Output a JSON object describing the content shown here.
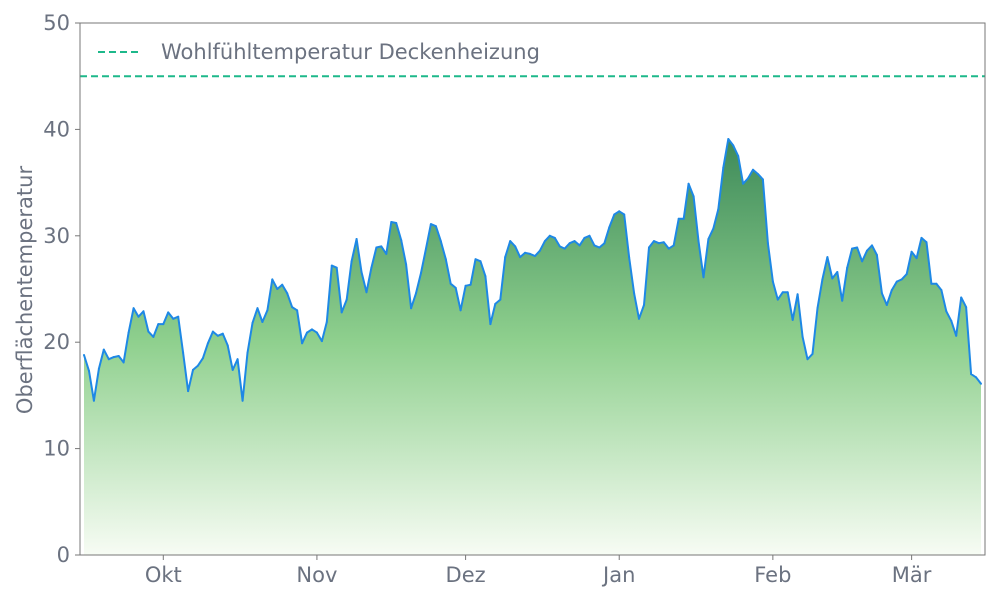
{
  "chart_data": {
    "type": "area",
    "title": "",
    "xlabel": "",
    "ylabel": "Oberflächentemperatur",
    "ylim": [
      0,
      50
    ],
    "yticks": [
      0,
      10,
      20,
      30,
      40,
      50
    ],
    "xticks": [
      {
        "date": "10-01",
        "label": "Okt"
      },
      {
        "date": "11-01",
        "label": "Nov"
      },
      {
        "date": "12-01",
        "label": "Dez"
      },
      {
        "date": "01-01",
        "label": "Jan"
      },
      {
        "date": "02-01",
        "label": "Feb"
      },
      {
        "date": "03-01",
        "label": "Mär"
      }
    ],
    "grid": false,
    "legend": {
      "placement": "top-left",
      "entries": [
        "Wohlfühltemperatur Deckenheizung"
      ]
    },
    "reference_line": {
      "name": "Wohlfühltemperatur Deckenheizung",
      "value": 45,
      "style": "dashed",
      "color": "#1db88a"
    },
    "colors": {
      "line": "#1e88e5",
      "fill_top": "#3a8757",
      "fill_mid": "#8fd08e",
      "fill_bottom": "#f7fcf4",
      "text": "#6b7280",
      "axis": "#777777"
    },
    "series": [
      {
        "x": [
          "09-15",
          "09-16",
          "09-17",
          "09-18",
          "09-19",
          "09-20",
          "09-21",
          "09-22",
          "09-23",
          "09-24",
          "09-25",
          "09-26",
          "09-27",
          "09-28",
          "09-29",
          "09-30",
          "10-01",
          "10-02",
          "10-03",
          "10-04",
          "10-05",
          "10-06",
          "10-07",
          "10-08",
          "10-09",
          "10-10",
          "10-11",
          "10-12",
          "10-13",
          "10-14",
          "10-15",
          "10-16",
          "10-17",
          "10-18",
          "10-19",
          "10-20",
          "10-21",
          "10-22",
          "10-23",
          "10-24",
          "10-25",
          "10-26",
          "10-27",
          "10-28",
          "10-29",
          "10-30",
          "10-31",
          "11-01",
          "11-02",
          "11-03",
          "11-04",
          "11-05",
          "11-06",
          "11-07",
          "11-08",
          "11-09",
          "11-10",
          "11-11",
          "11-12",
          "11-13",
          "11-14",
          "11-15",
          "11-16",
          "11-17",
          "11-18",
          "11-19",
          "11-20",
          "11-21",
          "11-22",
          "11-23",
          "11-24",
          "11-25",
          "11-26",
          "11-27",
          "11-28",
          "11-29",
          "11-30",
          "12-01",
          "12-02",
          "12-03",
          "12-04",
          "12-05",
          "12-06",
          "12-07",
          "12-08",
          "12-09",
          "12-10",
          "12-11",
          "12-12",
          "12-13",
          "12-14",
          "12-15",
          "12-16",
          "12-17",
          "12-18",
          "12-19",
          "12-20",
          "12-21",
          "12-22",
          "12-23",
          "12-24",
          "12-25",
          "12-26",
          "12-27",
          "12-28",
          "12-29",
          "12-30",
          "12-31",
          "01-01",
          "01-02",
          "01-03",
          "01-04",
          "01-05",
          "01-06",
          "01-07",
          "01-08",
          "01-09",
          "01-10",
          "01-11",
          "01-12",
          "01-13",
          "01-14",
          "01-15",
          "01-16",
          "01-17",
          "01-18",
          "01-19",
          "01-20",
          "01-21",
          "01-22",
          "01-23",
          "01-24",
          "01-25",
          "01-26",
          "01-27",
          "01-28",
          "01-29",
          "01-30",
          "01-31",
          "02-01",
          "02-02",
          "02-03",
          "02-04",
          "02-05",
          "02-06",
          "02-07",
          "02-08",
          "02-09",
          "02-10",
          "02-11",
          "02-12",
          "02-13",
          "02-14",
          "02-15",
          "02-16",
          "02-17",
          "02-18",
          "02-19",
          "02-20",
          "02-21",
          "02-22",
          "02-23",
          "02-24",
          "02-25",
          "02-26",
          "02-27",
          "02-28",
          "03-01",
          "03-02",
          "03-03",
          "03-04",
          "03-05",
          "03-06",
          "03-07",
          "03-08",
          "03-09",
          "03-10",
          "03-11",
          "03-12",
          "03-13",
          "03-14",
          "03-15"
        ],
        "y": [
          18.8,
          17.3,
          14.5,
          17.5,
          19.3,
          18.4,
          18.6,
          18.7,
          18.1,
          20.9,
          23.2,
          22.4,
          22.9,
          21.0,
          20.5,
          21.7,
          21.7,
          22.8,
          22.2,
          22.4,
          19.0,
          15.4,
          17.4,
          17.8,
          18.5,
          19.9,
          21.0,
          20.6,
          20.8,
          19.7,
          17.4,
          18.4,
          14.5,
          19.0,
          21.8,
          23.2,
          21.9,
          23.0,
          25.9,
          25.0,
          25.4,
          24.6,
          23.3,
          23.0,
          19.9,
          20.9,
          21.2,
          20.9,
          20.1,
          21.9,
          27.2,
          27.0,
          22.8,
          24.0,
          27.6,
          29.7,
          26.6,
          24.7,
          27.0,
          28.9,
          29.0,
          28.3,
          31.3,
          31.2,
          29.6,
          27.3,
          23.2,
          24.6,
          26.5,
          28.8,
          31.1,
          30.9,
          29.5,
          27.8,
          25.5,
          25.1,
          23.0,
          25.3,
          25.4,
          27.8,
          27.6,
          26.2,
          21.7,
          23.6,
          24.0,
          28.0,
          29.5,
          29.0,
          28.0,
          28.4,
          28.3,
          28.1,
          28.6,
          29.5,
          30.0,
          29.8,
          29.0,
          28.8,
          29.3,
          29.5,
          29.1,
          29.8,
          30.0,
          29.1,
          28.9,
          29.3,
          30.8,
          32.0,
          32.3,
          32.0,
          28.0,
          24.6,
          22.2,
          23.5,
          28.9,
          29.5,
          29.3,
          29.4,
          28.8,
          29.1,
          31.6,
          31.6,
          34.9,
          33.7,
          29.5,
          26.1,
          29.7,
          30.7,
          32.5,
          36.4,
          39.1,
          38.5,
          37.5,
          34.9,
          35.4,
          36.2,
          35.8,
          35.3,
          29.3,
          25.7,
          24.0,
          24.7,
          24.7,
          22.1,
          24.5,
          20.5,
          18.4,
          18.9,
          23.2,
          25.9,
          28.0,
          26.0,
          26.6,
          23.9,
          27.0,
          28.8,
          28.9,
          27.6,
          28.6,
          29.1,
          28.2,
          24.6,
          23.5,
          24.9,
          25.7,
          25.9,
          26.4,
          28.5,
          27.9,
          29.8,
          29.4,
          25.5,
          25.5,
          24.9,
          22.9,
          22.0,
          20.6,
          24.2,
          23.3,
          17.0,
          16.7,
          16.1
        ]
      }
    ]
  }
}
